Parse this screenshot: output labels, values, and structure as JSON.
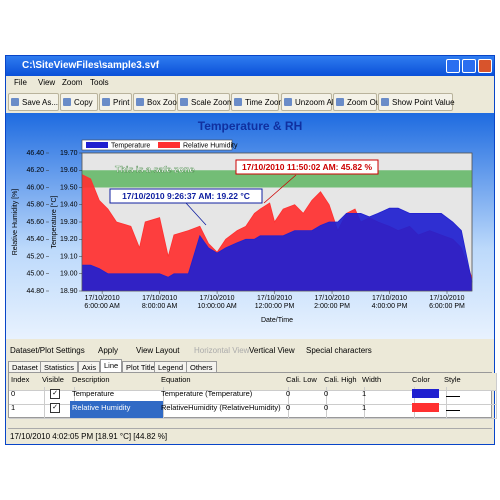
{
  "window": {
    "title": "C:\\SiteViewFiles\\sample3.svf"
  },
  "menu": [
    "File",
    "View",
    "Zoom",
    "Tools"
  ],
  "toolbar": [
    "Save As...",
    "Copy",
    "Print",
    "Box Zoom",
    "Scale Zoom",
    "Time Zoom",
    "Unzoom All",
    "Zoom Out",
    "Show Point Value"
  ],
  "chart_data": {
    "type": "area",
    "title": "Temperature & RH",
    "x_label": "Date/Time",
    "y_label": "Relative Humidity [%]",
    "y2_label": "Temperature [°C]",
    "x": [
      5.3,
      5.6,
      5.9,
      6.2,
      6.5,
      7.0,
      7.3,
      7.5,
      8.0,
      8.3,
      8.5,
      9.0,
      9.4,
      9.7,
      10.0,
      10.3,
      10.7,
      11.0,
      11.3,
      11.5,
      11.83,
      12.0,
      12.3,
      12.7,
      13.0,
      13.3,
      13.6,
      13.9,
      14.2,
      14.5,
      14.8,
      15.0,
      15.3,
      15.6,
      16.0,
      16.3,
      16.7,
      17.0,
      17.4,
      17.8,
      18.2,
      18.5,
      18.87
    ],
    "xlim": [
      5.3,
      18.87
    ],
    "xticks": [
      {
        "value": 6,
        "label": "17/10/2010 6:00:00 AM"
      },
      {
        "value": 8,
        "label": "17/10/2010 8:00:00 AM"
      },
      {
        "value": 10,
        "label": "17/10/2010 10:00:00 AM"
      },
      {
        "value": 12,
        "label": "17/10/2010 12:00:00 PM"
      },
      {
        "value": 14,
        "label": "17/10/2010 2:00:00 PM"
      },
      {
        "value": 16,
        "label": "17/10/2010 4:00:00 PM"
      },
      {
        "value": 18,
        "label": "17/10/2010 6:00:00 PM"
      }
    ],
    "ylim": [
      44.8,
      46.4
    ],
    "yticks": [
      {
        "value": 46.4,
        "label": "46.40"
      },
      {
        "value": 46.2,
        "label": "46.20"
      },
      {
        "value": 46,
        "label": "46.00"
      },
      {
        "value": 45.8,
        "label": "45.80"
      },
      {
        "value": 45.6,
        "label": "45.60"
      },
      {
        "value": 45.4,
        "label": "45.40"
      },
      {
        "value": 45.2,
        "label": "45.20"
      },
      {
        "value": 45,
        "label": "45.00"
      },
      {
        "value": 44.8,
        "label": "44.80"
      }
    ],
    "y2lim": [
      18.9,
      19.7
    ],
    "y2ticks": [
      {
        "value": 19.7,
        "label": "19.70"
      },
      {
        "value": 19.6,
        "label": "19.60"
      },
      {
        "value": 19.5,
        "label": "19.50"
      },
      {
        "value": 19.4,
        "label": "19.40"
      },
      {
        "value": 19.3,
        "label": "19.30"
      },
      {
        "value": 19.2,
        "label": "19.20"
      },
      {
        "value": 19.1,
        "label": "19.10"
      },
      {
        "value": 19,
        "label": "19.00"
      },
      {
        "value": 18.9,
        "label": "18.90"
      }
    ],
    "safe_zone": [
      19.5,
      19.6
    ],
    "series": [
      {
        "name": "Relative Humidity",
        "color": "#ff3030",
        "values": [
          46.15,
          46.1,
          45.85,
          45.75,
          45.6,
          45.55,
          45.3,
          45.6,
          45.65,
          45.2,
          45.45,
          45.5,
          45.55,
          45.35,
          45.25,
          45.4,
          45.5,
          45.55,
          45.7,
          45.75,
          45.82,
          45.6,
          45.75,
          45.8,
          45.7,
          45.85,
          45.95,
          45.8,
          45.5,
          45.7,
          45.75,
          45.6,
          45.65,
          45.6,
          45.55,
          45.5,
          45.55,
          45.45,
          45.5,
          45.45,
          45.4,
          45.3,
          44.95
        ]
      },
      {
        "name": "Temperature",
        "color": "#2020d0",
        "axis": "y2",
        "values": [
          19.05,
          19.05,
          19.03,
          19.0,
          19.0,
          19.0,
          19.0,
          19.0,
          19.0,
          18.98,
          19.0,
          19.0,
          19.22,
          19.15,
          19.12,
          19.15,
          19.18,
          19.2,
          19.2,
          19.22,
          19.22,
          19.22,
          19.22,
          19.25,
          19.25,
          19.25,
          19.28,
          19.3,
          19.3,
          19.35,
          19.35,
          19.35,
          19.33,
          19.35,
          19.38,
          19.38,
          19.35,
          19.35,
          19.35,
          19.35,
          19.3,
          19.25,
          18.95
        ]
      }
    ],
    "legend_order": [
      1,
      0
    ],
    "annotations": [
      "This is a safe zone",
      "17/10/2010 11:50:02 AM: 45.82 %",
      "17/10/2010 9:26:37 AM: 19.22 °C"
    ]
  },
  "settings": {
    "title": "Dataset/Plot Settings",
    "buttons": [
      "Apply",
      "View Layout",
      "Horizontal View",
      "Vertical View",
      "Special characters"
    ],
    "tabs": [
      "Dataset",
      "Statistics",
      "Axis",
      "Line",
      "Plot Title",
      "Legend",
      "Others"
    ]
  },
  "table": {
    "columns": [
      "Index",
      "Visible",
      "Description",
      "Equation",
      "Cali. Low",
      "Cali. High",
      "Width",
      "Color",
      "Style"
    ],
    "rows": [
      {
        "index": "0",
        "description": "Temperature",
        "equation": "Temperature (Temperature)",
        "cali_low": "0",
        "cali_high": "0",
        "width": "1"
      },
      {
        "index": "1",
        "description": "Relative Humidity",
        "equation": "RelativeHumidity (RelativeHumidity)",
        "cali_low": "0",
        "cali_high": "0",
        "width": "1"
      }
    ]
  },
  "status": "17/10/2010 4:02:05 PM [18.91 °C]  [44.82 %]"
}
